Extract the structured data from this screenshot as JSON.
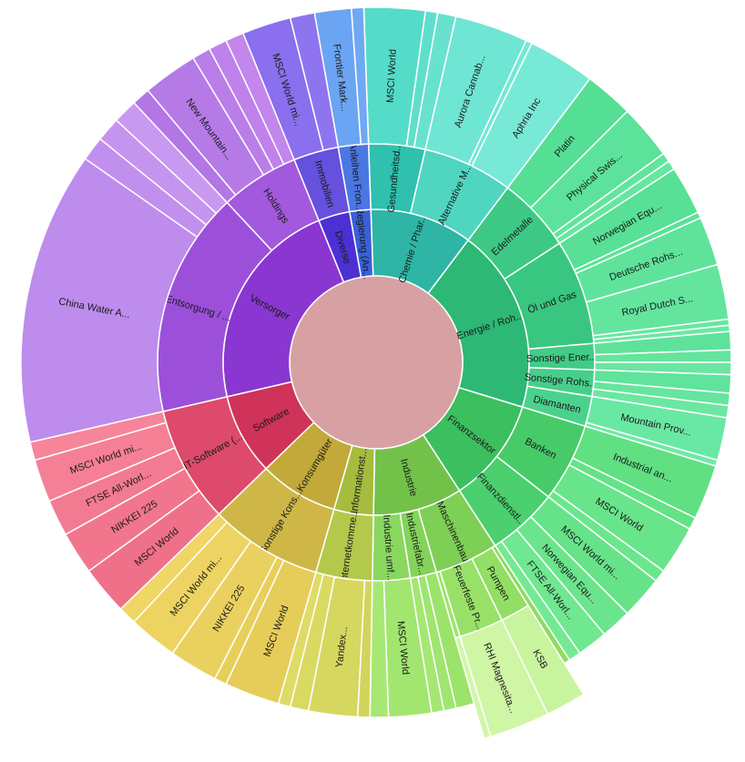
{
  "chart_data": {
    "type": "sunburst",
    "title": "",
    "background": "#ffffff",
    "center": [
      413,
      398
    ],
    "center_color": "#d7a1a4",
    "stroke_color": "#ffffff",
    "label_color": "#1b1b1b",
    "radii": {
      "ring": [
        95,
        168,
        240
      ],
      "branch3": 315,
      "leaf3": 390,
      "ring4": 430
    },
    "start_angle_deg": -2,
    "value_unit": "degrees_of_arc",
    "nodes": [
      {
        "label": "Chemie / Phar...",
        "value": 39,
        "color": "#2eb5a5",
        "children": [
          {
            "label": "Gesundheitsd...",
            "value": 15,
            "color": "#2fc0ae",
            "children": [
              {
                "label": "MSCI World",
                "value": 10,
                "color": "#55dcc8"
              },
              {
                "label": "",
                "value": 2,
                "color": "#5fdfcb"
              },
              {
                "label": "",
                "value": 3,
                "color": "#68e2cf"
              }
            ]
          },
          {
            "label": "Alternative M...",
            "value": 24,
            "color": "#50d5c1",
            "children": [
              {
                "label": "Aurora Cannab...",
                "value": 12,
                "color": "#6fe5d3"
              },
              {
                "label": "",
                "value": 1,
                "color": "#74e7d5"
              },
              {
                "label": "Aphria Inc",
                "value": 11,
                "color": "#79e9d7"
              }
            ]
          }
        ]
      },
      {
        "label": "Energie / Roh...",
        "value": 70,
        "color": "#2db876",
        "children": [
          {
            "label": "Edelmetalle",
            "value": 20,
            "color": "#3dc985",
            "children": [
              {
                "label": "Platin",
                "value": 8,
                "color": "#55df95"
              },
              {
                "label": "Physical Swis...",
                "value": 9,
                "color": "#5ce29a"
              },
              {
                "label": "",
                "value": 1.5,
                "color": "#62e49e"
              },
              {
                "label": "",
                "value": 1.5,
                "color": "#67e6a1"
              }
            ]
          },
          {
            "label": "Öl und Gas",
            "value": 28,
            "color": "#39c680",
            "children": [
              {
                "label": "Norwegian Equ...",
                "value": 8,
                "color": "#57e096"
              },
              {
                "label": "",
                "value": 1,
                "color": "#5be298"
              },
              {
                "label": "Deutsche Rohs...",
                "value": 8,
                "color": "#5fe39b"
              },
              {
                "label": "Royal Dutch S...",
                "value": 9,
                "color": "#64e59e"
              },
              {
                "label": "",
                "value": 1,
                "color": "#68e7a1"
              },
              {
                "label": "",
                "value": 1,
                "color": "#6ce8a3"
              }
            ]
          },
          {
            "label": "Sonstige Ener...",
            "value": 7,
            "color": "#42cc87",
            "children": [
              {
                "label": "",
                "value": 3,
                "color": "#5ee29a"
              },
              {
                "label": "",
                "value": 2,
                "color": "#64e49d"
              },
              {
                "label": "",
                "value": 2,
                "color": "#69e6a0"
              }
            ]
          },
          {
            "label": "Sonstige Rohs...",
            "value": 7,
            "color": "#46cf8a",
            "children": [
              {
                "label": "",
                "value": 3,
                "color": "#60e39b"
              },
              {
                "label": "",
                "value": 2,
                "color": "#66e59e"
              },
              {
                "label": "",
                "value": 2,
                "color": "#6be7a2"
              }
            ]
          },
          {
            "label": "Diamanten",
            "value": 8,
            "color": "#4ad28d",
            "children": [
              {
                "label": "Mountain Prov...",
                "value": 7,
                "color": "#69e8a4"
              },
              {
                "label": "",
                "value": 1,
                "color": "#6eeaa7"
              }
            ]
          }
        ]
      },
      {
        "label": "Finanzsektor",
        "value": 40,
        "color": "#3cbf5f",
        "children": [
          {
            "label": "Banken",
            "value": 21,
            "color": "#47cb69",
            "children": [
              {
                "label": "Industrial an...",
                "value": 9,
                "color": "#60e083"
              },
              {
                "label": "",
                "value": 2,
                "color": "#64e286"
              },
              {
                "label": "MSCI World",
                "value": 8,
                "color": "#68e48a"
              },
              {
                "label": "",
                "value": 2,
                "color": "#6ce68d"
              }
            ]
          },
          {
            "label": "Finanzdienstl...",
            "value": 19,
            "color": "#4ccf6e",
            "children": [
              {
                "label": "MSCI World mi...",
                "value": 7,
                "color": "#66e389"
              },
              {
                "label": "Norwegian Equ...",
                "value": 5,
                "color": "#6be58d"
              },
              {
                "label": "FTSE All-Worl...",
                "value": 5,
                "color": "#70e791"
              },
              {
                "label": "",
                "value": 2,
                "color": "#74e994"
              }
            ]
          }
        ]
      },
      {
        "label": "Industrie",
        "value": 34,
        "color": "#72c24a",
        "children": [
          {
            "label": "Maschinenbau",
            "value": 17,
            "color": "#7ecf55",
            "children": [
              {
                "label": "",
                "value": 1,
                "color": "#8edc61"
              },
              {
                "label": "Pumpen",
                "value": 6,
                "color": "#93de64",
                "children": [
                  {
                    "label": "KSB",
                    "value": 6,
                    "color": "#c9f49e"
                  }
                ]
              },
              {
                "label": "Feuerfeste Pr...",
                "value": 9,
                "color": "#98e168",
                "children": [
                  {
                    "label": "RHI Magnesita...",
                    "value": 9,
                    "color": "#cff6a4"
                  }
                ]
              },
              {
                "label": "",
                "value": 1,
                "color": "#9de46c",
                "children": [
                  {
                    "label": "",
                    "value": 1,
                    "color": "#d2f7a8"
                  }
                ]
              }
            ]
          },
          {
            "label": "Industriefabr...",
            "value": 7,
            "color": "#84d35a",
            "children": [
              {
                "label": "",
                "value": 3,
                "color": "#9ce36b"
              },
              {
                "label": "",
                "value": 2,
                "color": "#a0e56f"
              },
              {
                "label": "",
                "value": 2,
                "color": "#a4e772"
              }
            ]
          },
          {
            "label": "Industrie umf...",
            "value": 10,
            "color": "#89d75f",
            "children": [
              {
                "label": "MSCI World",
                "value": 7,
                "color": "#a2e670"
              },
              {
                "label": "",
                "value": 3,
                "color": "#a7e874"
              }
            ]
          }
        ]
      },
      {
        "label": "Informationst...",
        "value": 15,
        "color": "#a5bc3e",
        "children": [
          {
            "label": "Internetkomme...",
            "value": 15,
            "color": "#b3c94b",
            "children": [
              {
                "label": "",
                "value": 2,
                "color": "#d2d55d"
              },
              {
                "label": "Yandex...",
                "value": 8,
                "color": "#d6d75f"
              },
              {
                "label": "",
                "value": 3,
                "color": "#dad962"
              },
              {
                "label": "",
                "value": 2,
                "color": "#dedc66"
              }
            ]
          }
        ]
      },
      {
        "label": "Konsumgüter",
        "value": 30,
        "color": "#c2a939",
        "children": [
          {
            "label": "Sonstige Kons...",
            "value": 30,
            "color": "#ceb747",
            "children": [
              {
                "label": "MSCI World",
                "value": 9,
                "color": "#e6cd59"
              },
              {
                "label": "",
                "value": 2,
                "color": "#e8cf5c"
              },
              {
                "label": "NIKKEI 225",
                "value": 8,
                "color": "#ead15f"
              },
              {
                "label": "MSCI World mi...",
                "value": 8,
                "color": "#edd462"
              },
              {
                "label": "",
                "value": 3,
                "color": "#efd665"
              }
            ]
          }
        ]
      },
      {
        "label": "Software",
        "value": 31,
        "color": "#cf3359",
        "children": [
          {
            "label": "IT-Software (...",
            "value": 31,
            "color": "#dd4a6b",
            "children": [
              {
                "label": "MSCI World",
                "value": 8,
                "color": "#ef7189"
              },
              {
                "label": "NIKKEI 225",
                "value": 7,
                "color": "#f1768d"
              },
              {
                "label": "FTSE All-Worl...",
                "value": 6,
                "color": "#f37b91"
              },
              {
                "label": "MSCI World mi...",
                "value": 7,
                "color": "#f58095"
              },
              {
                "label": "",
                "value": 3,
                "color": "#f78599"
              }
            ]
          }
        ]
      },
      {
        "label": "Versorger",
        "value": 81,
        "color": "#8a36d1",
        "children": [
          {
            "label": "Entsorgung / ...",
            "value": 60,
            "color": "#9c50da",
            "children": [
              {
                "label": "China Water A...",
                "value": 48,
                "color": "#bd8cec"
              },
              {
                "label": "",
                "value": 4,
                "color": "#c190ee"
              },
              {
                "label": "",
                "value": 4,
                "color": "#c594ef"
              },
              {
                "label": "",
                "value": 4,
                "color": "#c998f1"
              }
            ]
          },
          {
            "label": "Holdings",
            "value": 21,
            "color": "#a259dd",
            "children": [
              {
                "label": "",
                "value": 3,
                "color": "#b276e5"
              },
              {
                "label": "New Mountain...",
                "value": 9,
                "color": "#b67ae7"
              },
              {
                "label": "",
                "value": 3,
                "color": "#ba7ee9"
              },
              {
                "label": "",
                "value": 3,
                "color": "#be82ea"
              },
              {
                "label": "",
                "value": 3,
                "color": "#c286ec"
              }
            ]
          }
        ]
      },
      {
        "label": "Diverse",
        "value": 12,
        "color": "#4c30d4",
        "children": [
          {
            "label": "Immobilien",
            "value": 12,
            "color": "#6551dd",
            "children": [
              {
                "label": "MSCI World mi...",
                "value": 8,
                "color": "#8a6fee"
              },
              {
                "label": "",
                "value": 4,
                "color": "#8f74f0"
              }
            ]
          }
        ]
      },
      {
        "label": "Regierung (An...",
        "value": 8,
        "color": "#3a60d6",
        "children": [
          {
            "label": "Anleihen Fron...",
            "value": 8,
            "color": "#4a77e2",
            "children": [
              {
                "label": "Frontier Mark...",
                "value": 6,
                "color": "#6ba4f2"
              },
              {
                "label": "",
                "value": 2,
                "color": "#70a8f4"
              }
            ]
          }
        ]
      }
    ]
  }
}
